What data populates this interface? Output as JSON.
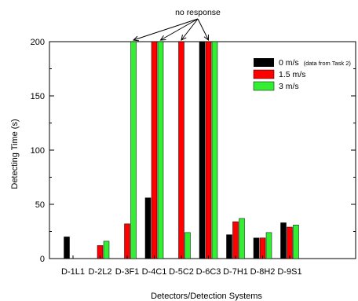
{
  "chart_data": {
    "type": "bar",
    "title": "",
    "xlabel": "Detectors/Detection Systems",
    "ylabel": "Detecting Time (s)",
    "ylim": [
      0,
      200
    ],
    "yticks": [
      0,
      50,
      100,
      150,
      200
    ],
    "categories": [
      "D-1L1",
      "D-2L2",
      "D-3F1",
      "D-4C1",
      "D-5C2",
      "D-6C3",
      "D-7H1",
      "D-8H2",
      "D-9S1"
    ],
    "series": [
      {
        "name": "0 m/s",
        "name_note": "(data from Task 2)",
        "color": "#000000",
        "values": [
          20,
          null,
          null,
          56,
          null,
          200,
          22,
          19,
          33
        ]
      },
      {
        "name": "1.5 m/s",
        "color": "#ff0000",
        "values": [
          null,
          12,
          32,
          200,
          200,
          200,
          34,
          19,
          29
        ]
      },
      {
        "name": "3 m/s",
        "color": "#33ee33",
        "values": [
          null,
          16,
          200,
          200,
          24,
          200,
          37,
          24,
          31
        ]
      }
    ],
    "annotation": {
      "text": "no response"
    },
    "legend_position": "top-right",
    "grid": false
  }
}
